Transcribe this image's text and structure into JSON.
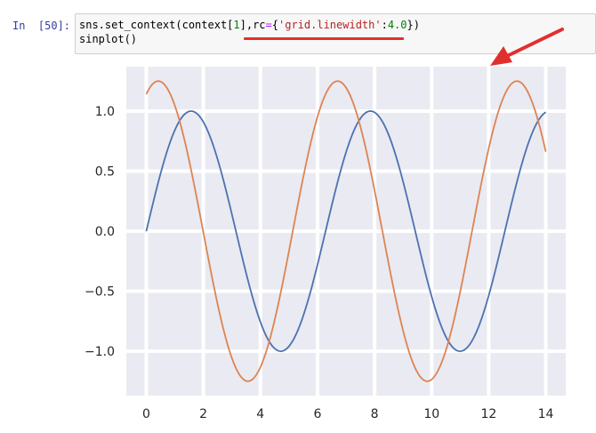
{
  "cell": {
    "prompt": "In  [50]:",
    "line1": {
      "a": "sns.set_context(context[",
      "b": "1",
      "c": "],rc",
      "d": "=",
      "e": "{",
      "f": "'grid.linewidth'",
      "g": ":",
      "h": "4.0",
      "i": "})"
    },
    "line2": "sinplot()"
  },
  "colors": {
    "background": "#eaeaf2",
    "grid": "#ffffff",
    "series1": "#4c72b0",
    "series2": "#dd8452",
    "annotation": "#e0302e"
  },
  "chart_data": {
    "type": "line",
    "xlim": [
      -0.7,
      14.7
    ],
    "ylim": [
      -1.37,
      1.37
    ],
    "xticks": [
      0,
      2,
      4,
      6,
      8,
      10,
      12,
      14
    ],
    "yticks": [
      -1.0,
      -0.5,
      0.0,
      0.5,
      1.0
    ],
    "xtick_labels": [
      "0",
      "2",
      "4",
      "6",
      "8",
      "10",
      "12",
      "14"
    ],
    "ytick_labels": [
      "−1.0",
      "−0.5",
      "0.0",
      "0.5",
      "1.0"
    ],
    "grid": true,
    "grid_linewidth": 4.0,
    "series": [
      {
        "amplitude": 1.0,
        "phase": 0,
        "x_start": 0,
        "x_end": 14
      },
      {
        "amplitude": 1.25,
        "phase": 0.5,
        "x_start": 0,
        "x_end": 14
      }
    ]
  }
}
